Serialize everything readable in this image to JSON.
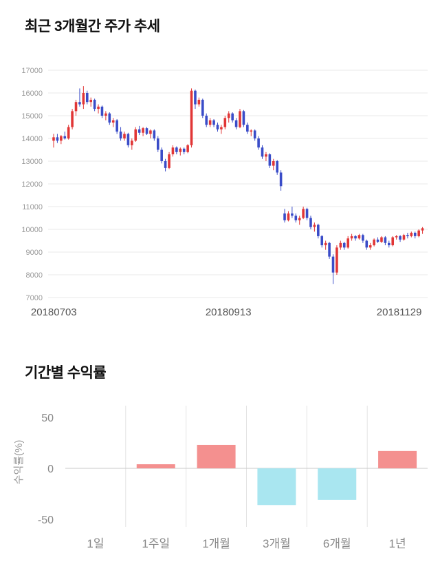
{
  "section1": {
    "title": "최근 3개월간 주가 추세"
  },
  "section2": {
    "title": "기간별 수익률"
  },
  "chart_data": [
    {
      "type": "candlestick",
      "title": "최근 3개월간 주가 추세",
      "x_labels": [
        "20180703",
        "20180913",
        "20181129"
      ],
      "ylim": [
        7000,
        17000
      ],
      "y_ticks": [
        17000,
        16000,
        15000,
        14000,
        13000,
        12000,
        11000,
        10000,
        9000,
        8000,
        7000
      ],
      "up_color": "#e13636",
      "down_color": "#3a4cc8",
      "grid_color": "#eaeaea",
      "ohlc": [
        [
          13900,
          14200,
          13600,
          14050
        ],
        [
          14050,
          14200,
          13800,
          13900
        ],
        [
          13900,
          14150,
          13750,
          14100
        ],
        [
          14100,
          14300,
          13950,
          14000
        ],
        [
          14000,
          14600,
          13950,
          14500
        ],
        [
          14500,
          15300,
          14400,
          15200
        ],
        [
          15200,
          15700,
          15000,
          15600
        ],
        [
          15600,
          16200,
          15400,
          15500
        ],
        [
          15500,
          16300,
          15300,
          16000
        ],
        [
          16000,
          16100,
          15500,
          15600
        ],
        [
          15600,
          15800,
          15400,
          15700
        ],
        [
          15700,
          15750,
          15200,
          15300
        ],
        [
          15300,
          15500,
          15100,
          15400
        ],
        [
          15400,
          15450,
          14900,
          15000
        ],
        [
          15000,
          15200,
          14800,
          15100
        ],
        [
          15100,
          15150,
          14600,
          14700
        ],
        [
          14700,
          14900,
          14500,
          14800
        ],
        [
          14800,
          14850,
          14200,
          14300
        ],
        [
          14300,
          14500,
          13900,
          14000
        ],
        [
          14000,
          14300,
          13900,
          14200
        ],
        [
          14200,
          14250,
          13600,
          13700
        ],
        [
          13700,
          14000,
          13500,
          13900
        ],
        [
          13900,
          14500,
          13850,
          14400
        ],
        [
          14400,
          14550,
          14150,
          14250
        ],
        [
          14250,
          14500,
          14100,
          14450
        ],
        [
          14450,
          14500,
          14150,
          14200
        ],
        [
          14200,
          14400,
          14000,
          14350
        ],
        [
          14350,
          14400,
          13900,
          14000
        ],
        [
          14000,
          14100,
          13400,
          13500
        ],
        [
          13500,
          13600,
          12900,
          13000
        ],
        [
          13000,
          13100,
          12550,
          12700
        ],
        [
          12700,
          13400,
          12650,
          13300
        ],
        [
          13300,
          13700,
          13200,
          13600
        ],
        [
          13600,
          13650,
          13300,
          13400
        ],
        [
          13400,
          13600,
          13250,
          13550
        ],
        [
          13550,
          13600,
          13300,
          13400
        ],
        [
          13400,
          13750,
          13350,
          13700
        ],
        [
          13700,
          16200,
          13600,
          16100
        ],
        [
          16100,
          16150,
          15300,
          15500
        ],
        [
          15500,
          15800,
          15400,
          15700
        ],
        [
          15700,
          15750,
          14900,
          15000
        ],
        [
          15000,
          15100,
          14500,
          14600
        ],
        [
          14600,
          14900,
          14500,
          14800
        ],
        [
          14800,
          14850,
          14500,
          14600
        ],
        [
          14600,
          14700,
          14300,
          14400
        ],
        [
          14400,
          14600,
          14200,
          14500
        ],
        [
          14500,
          15000,
          14400,
          14900
        ],
        [
          14900,
          15200,
          14700,
          15100
        ],
        [
          15100,
          15150,
          14700,
          14800
        ],
        [
          14800,
          14900,
          14400,
          14500
        ],
        [
          14500,
          15300,
          14450,
          15200
        ],
        [
          15200,
          15250,
          14500,
          14600
        ],
        [
          14600,
          14700,
          14200,
          14300
        ],
        [
          14300,
          14400,
          14100,
          14350
        ],
        [
          14350,
          14400,
          13900,
          14000
        ],
        [
          14000,
          14100,
          13500,
          13600
        ],
        [
          13600,
          13700,
          13100,
          13200
        ],
        [
          13200,
          13400,
          13000,
          13300
        ],
        [
          13300,
          13350,
          12700,
          12800
        ],
        [
          12800,
          13100,
          12600,
          13000
        ],
        [
          13000,
          13050,
          12400,
          12500
        ],
        [
          12500,
          12600,
          11700,
          11900
        ],
        [
          10700,
          10900,
          10300,
          10400
        ],
        [
          10400,
          10800,
          10350,
          10700
        ],
        [
          10700,
          11000,
          10500,
          10600
        ],
        [
          10600,
          10700,
          10300,
          10400
        ],
        [
          10400,
          10600,
          10200,
          10500
        ],
        [
          10500,
          11000,
          10450,
          10900
        ],
        [
          10900,
          10950,
          10400,
          10500
        ],
        [
          10500,
          10600,
          10000,
          10100
        ],
        [
          10100,
          10300,
          9900,
          10200
        ],
        [
          10200,
          10250,
          9600,
          9700
        ],
        [
          9700,
          9750,
          9200,
          9300
        ],
        [
          9300,
          9500,
          9100,
          9400
        ],
        [
          9400,
          9450,
          8700,
          8800
        ],
        [
          8800,
          8900,
          7600,
          8100
        ],
        [
          8100,
          9300,
          8000,
          9200
        ],
        [
          9200,
          9500,
          9100,
          9400
        ],
        [
          9400,
          9450,
          9100,
          9200
        ],
        [
          9200,
          9700,
          9150,
          9600
        ],
        [
          9600,
          9800,
          9500,
          9700
        ],
        [
          9700,
          9750,
          9500,
          9600
        ],
        [
          9600,
          9800,
          9550,
          9750
        ],
        [
          9750,
          9800,
          9400,
          9500
        ],
        [
          9500,
          9550,
          9100,
          9200
        ],
        [
          9200,
          9400,
          9100,
          9300
        ],
        [
          9300,
          9600,
          9250,
          9550
        ],
        [
          9550,
          9650,
          9400,
          9450
        ],
        [
          9450,
          9700,
          9400,
          9650
        ],
        [
          9650,
          9700,
          9300,
          9400
        ],
        [
          9400,
          9500,
          9200,
          9300
        ],
        [
          9300,
          9700,
          9250,
          9650
        ],
        [
          9650,
          9750,
          9550,
          9700
        ],
        [
          9700,
          9750,
          9450,
          9550
        ],
        [
          9550,
          9800,
          9500,
          9750
        ],
        [
          9750,
          9850,
          9600,
          9700
        ],
        [
          9700,
          9900,
          9650,
          9850
        ],
        [
          9850,
          9900,
          9600,
          9700
        ],
        [
          9700,
          10000,
          9650,
          9950
        ],
        [
          9950,
          10100,
          9800,
          10050
        ]
      ]
    },
    {
      "type": "bar",
      "title": "기간별 수익률",
      "categories": [
        "1일",
        "1주일",
        "1개월",
        "3개월",
        "6개월",
        "1년"
      ],
      "values": [
        0,
        4,
        23,
        -36,
        -31,
        17
      ],
      "ylabel": "수익률(%)",
      "ylim": [
        -50,
        50
      ],
      "y_ticks": [
        50,
        0,
        -50
      ],
      "positive_color": "#f4908f",
      "negative_color": "#a9e6f0",
      "grid_color": "#e3e3e3",
      "zero_line_color": "#c9c9c9"
    }
  ]
}
